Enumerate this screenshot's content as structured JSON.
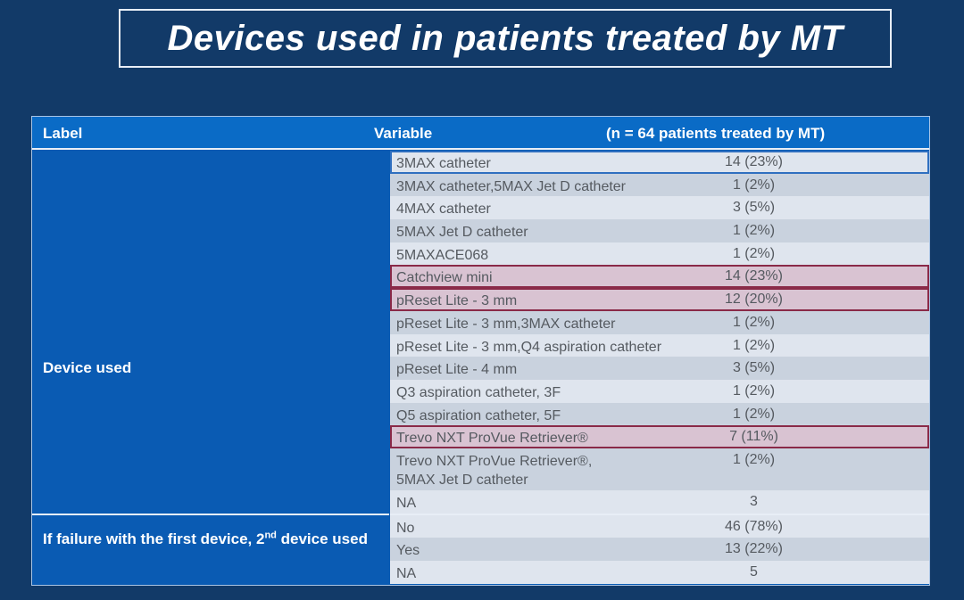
{
  "title": "Devices used in patients treated by MT",
  "table": {
    "headers": {
      "label": "Label",
      "variable": "Variable",
      "count": "(n = 64 patients treated by MT)"
    },
    "groups": [
      {
        "label": "Device used",
        "rows": [
          {
            "variable": "3MAX catheter",
            "count": "14 (23%)",
            "highlight": "blue"
          },
          {
            "variable": "3MAX catheter,5MAX Jet D catheter",
            "count": "1 (2%)"
          },
          {
            "variable": "4MAX catheter",
            "count": "3 (5%)"
          },
          {
            "variable": "5MAX Jet D catheter",
            "count": "1 (2%)"
          },
          {
            "variable": "5MAXACE068",
            "count": "1 (2%)"
          },
          {
            "variable": "Catchview mini",
            "count": "14 (23%)",
            "highlight": "red"
          },
          {
            "variable": "pReset Lite - 3 mm",
            "count": "12 (20%)",
            "highlight": "red"
          },
          {
            "variable": "pReset Lite - 3 mm,3MAX catheter",
            "count": "1 (2%)"
          },
          {
            "variable": "pReset Lite - 3 mm,Q4 aspiration catheter",
            "count": "1 (2%)"
          },
          {
            "variable": "pReset Lite - 4 mm",
            "count": "3 (5%)"
          },
          {
            "variable": "Q3 aspiration catheter, 3F",
            "count": "1 (2%)"
          },
          {
            "variable": "Q5 aspiration catheter, 5F",
            "count": "1 (2%)"
          },
          {
            "variable": "Trevo NXT ProVue Retriever®",
            "count": "7 (11%)",
            "highlight": "red"
          },
          {
            "variable_lines": [
              "Trevo NXT ProVue Retriever®,",
              "5MAX Jet D catheter"
            ],
            "count": "1 (2%)"
          },
          {
            "variable": "NA",
            "count": "3"
          }
        ]
      },
      {
        "label_pre": "If failure with the first device, 2",
        "label_sup": "nd",
        "label_post": " device used",
        "rows": [
          {
            "variable": "No",
            "count": "46 (78%)"
          },
          {
            "variable": "Yes",
            "count": "13 (22%)"
          },
          {
            "variable": "NA",
            "count": "5"
          }
        ]
      }
    ]
  }
}
